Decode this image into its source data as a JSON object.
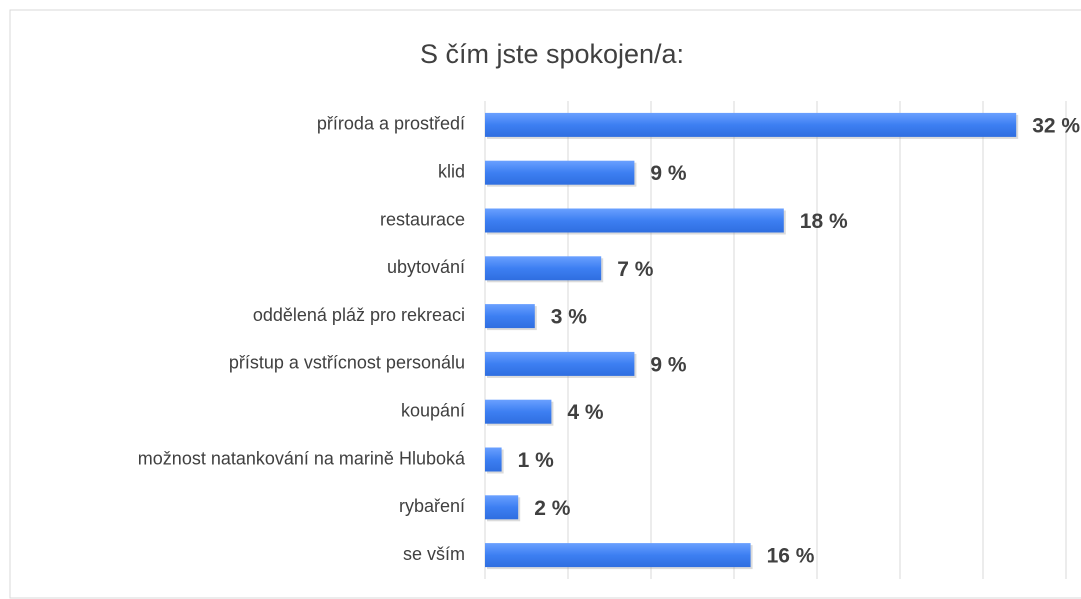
{
  "chart_data": {
    "type": "bar",
    "orientation": "horizontal",
    "title": "S čím jste spokojen/a:",
    "categories": [
      "příroda a prostředí",
      "klid",
      "restaurace",
      "ubytování",
      "oddělená pláž pro rekreaci",
      "přístup a vstřícnost personálu",
      "koupání",
      "možnost natankování na marině Hluboká",
      "rybaření",
      "se vším"
    ],
    "values": [
      32,
      9,
      18,
      7,
      3,
      9,
      4,
      1,
      2,
      16
    ],
    "value_labels": [
      "32 %",
      "9 %",
      "18 %",
      "7 %",
      "3 %",
      "9 %",
      "4 %",
      "1 %",
      "2 %",
      "16 %"
    ],
    "color": "#3d7ff2",
    "xlim": [
      0,
      35
    ],
    "xticks": [
      0,
      5,
      10,
      15,
      20,
      25,
      30,
      35
    ],
    "grid": true
  }
}
